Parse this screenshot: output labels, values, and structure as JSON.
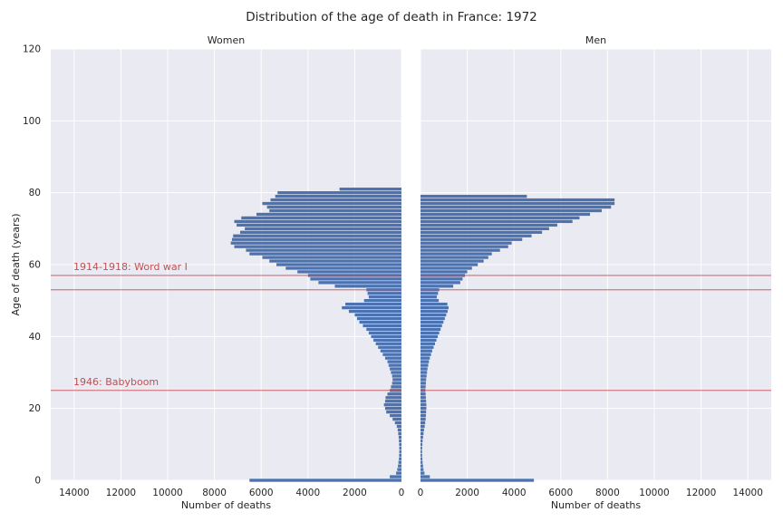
{
  "figure": {
    "title": "Distribution of the age of death in France: 1972",
    "background": "#ffffff",
    "axes_facecolor": "#eaeaf2",
    "grid_color": "#ffffff",
    "bar_color": "#4c72b0",
    "annotation_color": "#c44e52"
  },
  "chart_data": [
    {
      "type": "bar",
      "orientation": "horizontal",
      "title": "Women",
      "xlabel": "Number of deaths",
      "ylabel": "Age of death (years)",
      "xlim": [
        15000,
        0
      ],
      "x_inverted": true,
      "ylim": [
        0,
        120
      ],
      "xticks": [
        "14000",
        "12000",
        "10000",
        "8000",
        "6000",
        "4000",
        "2000",
        "0"
      ],
      "yticks": [
        "0",
        "20",
        "40",
        "60",
        "80",
        "100",
        "120"
      ],
      "grid": true,
      "ages": [
        0,
        1,
        2,
        3,
        4,
        5,
        6,
        7,
        8,
        9,
        10,
        11,
        12,
        13,
        14,
        15,
        16,
        17,
        18,
        19,
        20,
        21,
        22,
        23,
        24,
        25,
        26,
        27,
        28,
        29,
        30,
        31,
        32,
        33,
        34,
        35,
        36,
        37,
        38,
        39,
        40,
        41,
        42,
        43,
        44,
        45,
        46,
        47,
        48,
        49,
        50,
        51,
        52,
        53,
        54,
        55,
        56,
        57,
        58,
        59,
        60,
        61,
        62,
        63,
        64,
        65,
        66,
        67,
        68,
        69,
        70,
        71,
        72,
        73,
        74,
        75,
        76,
        77,
        78,
        79,
        80,
        81
      ],
      "values": [
        6500,
        500,
        230,
        180,
        150,
        130,
        110,
        100,
        95,
        95,
        100,
        110,
        120,
        140,
        160,
        200,
        280,
        380,
        500,
        650,
        700,
        750,
        700,
        680,
        600,
        500,
        450,
        400,
        380,
        400,
        450,
        500,
        550,
        600,
        700,
        800,
        900,
        1000,
        1100,
        1200,
        1300,
        1400,
        1500,
        1650,
        1800,
        1900,
        2000,
        2250,
        2550,
        2400,
        1600,
        1400,
        1450,
        1500,
        2850,
        3550,
        3900,
        4000,
        4450,
        4950,
        5350,
        5650,
        5950,
        6500,
        6650,
        7150,
        7300,
        7250,
        7200,
        6900,
        6700,
        7050,
        7150,
        6850,
        6200,
        5650,
        5750,
        5950,
        5600,
        5400,
        5300,
        2650
      ]
    },
    {
      "type": "bar",
      "orientation": "horizontal",
      "title": "Men",
      "xlabel": "Number of deaths",
      "xlim": [
        0,
        15000
      ],
      "ylim": [
        0,
        120
      ],
      "xticks": [
        "0",
        "2000",
        "4000",
        "6000",
        "8000",
        "10000",
        "12000",
        "14000"
      ],
      "grid": true,
      "ages": [
        0,
        1,
        2,
        3,
        4,
        5,
        6,
        7,
        8,
        9,
        10,
        11,
        12,
        13,
        14,
        15,
        16,
        17,
        18,
        19,
        20,
        21,
        22,
        23,
        24,
        25,
        26,
        27,
        28,
        29,
        30,
        31,
        32,
        33,
        34,
        35,
        36,
        37,
        38,
        39,
        40,
        41,
        42,
        43,
        44,
        45,
        46,
        47,
        48,
        49,
        50,
        51,
        52,
        53,
        54,
        55,
        56,
        57,
        58,
        59,
        60,
        61,
        62,
        63,
        64,
        65,
        66,
        67,
        68,
        69,
        70,
        71,
        72,
        73,
        74,
        75,
        76,
        77,
        78,
        79,
        80,
        81
      ],
      "values": [
        4850,
        400,
        170,
        130,
        110,
        90,
        80,
        70,
        65,
        70,
        80,
        90,
        110,
        130,
        150,
        180,
        200,
        220,
        230,
        240,
        250,
        250,
        240,
        230,
        220,
        210,
        220,
        230,
        240,
        260,
        280,
        300,
        330,
        360,
        400,
        450,
        500,
        560,
        620,
        680,
        740,
        800,
        860,
        920,
        980,
        1040,
        1100,
        1160,
        1200,
        1150,
        780,
        700,
        750,
        800,
        1400,
        1700,
        1800,
        1900,
        2000,
        2200,
        2450,
        2700,
        2900,
        3050,
        3400,
        3750,
        3900,
        4350,
        4750,
        5200,
        5500,
        5850,
        6500,
        6800,
        7250,
        7750,
        8150,
        8300,
        8300,
        4550,
        0,
        0
      ]
    }
  ],
  "annotations": [
    {
      "label": "1914-1918: Word war I",
      "line_ages": [
        57,
        53
      ],
      "text_age": 58.5
    },
    {
      "label": "1946: Babyboom",
      "line_ages": [
        25
      ],
      "text_age": 26.5
    }
  ]
}
